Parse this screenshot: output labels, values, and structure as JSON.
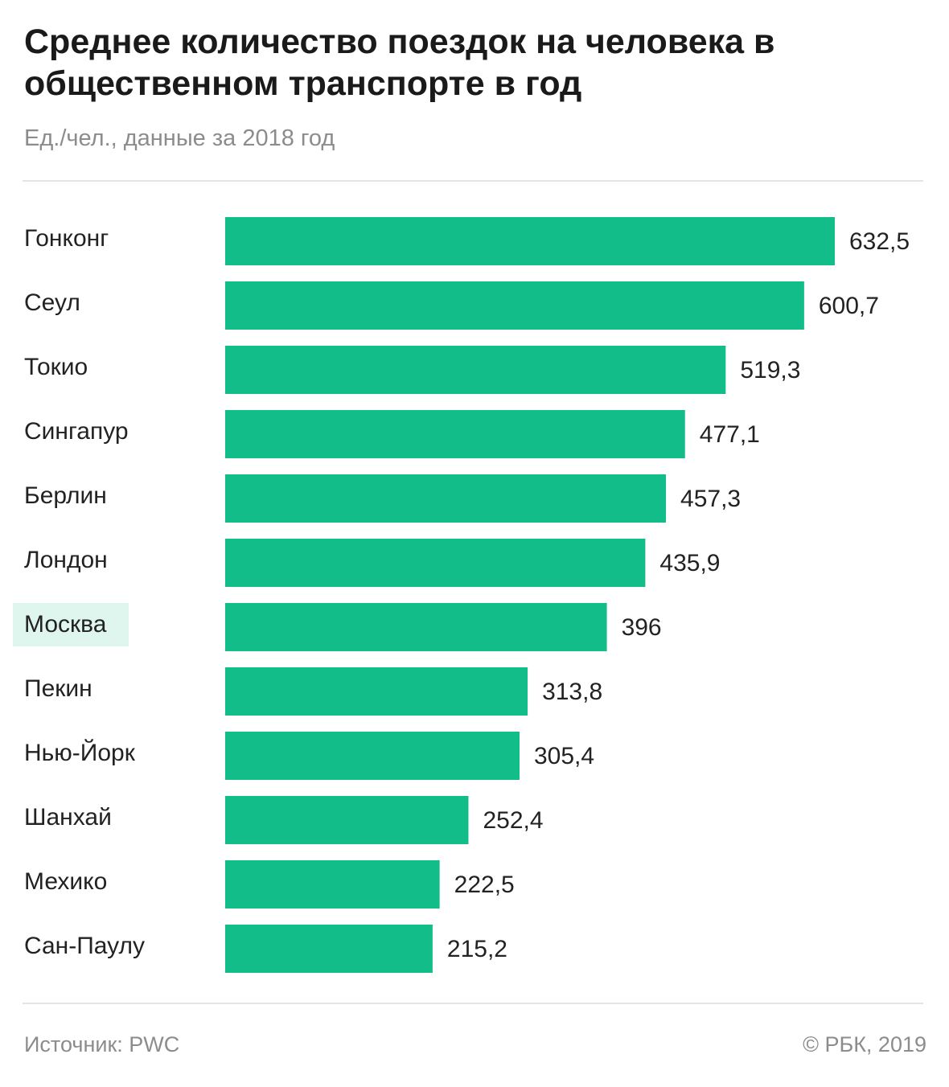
{
  "title": "Среднее количество поездок на человека в общественном транспорте в год",
  "subtitle": "Ед./чел., данные за 2018 год",
  "footer": {
    "source": "Источник: PWC",
    "credit": "© РБК, 2019"
  },
  "colors": {
    "bar": "#13bd89",
    "highlight_background": "#dff6ee",
    "text": "#222222",
    "muted": "#8c8c8c"
  },
  "chart_data": {
    "type": "bar",
    "orientation": "horizontal",
    "title": "Среднее количество поездок на человека в общественном транспорте в год",
    "subtitle": "Ед./чел., данные за 2018 год",
    "categories": [
      "Гонконг",
      "Сеул",
      "Токио",
      "Сингапур",
      "Берлин",
      "Лондон",
      "Москва",
      "Пекин",
      "Нью-Йорк",
      "Шанхай",
      "Мехико",
      "Сан-Паулу"
    ],
    "values": [
      632.5,
      600.7,
      519.3,
      477.1,
      457.3,
      435.9,
      396,
      313.8,
      305.4,
      252.4,
      222.5,
      215.2
    ],
    "value_labels": [
      "632,5",
      "600,7",
      "519,3",
      "477,1",
      "457,3",
      "435,9",
      "396",
      "313,8",
      "305,4",
      "252,4",
      "222,5",
      "215,2"
    ],
    "highlighted_category": "Москва",
    "xlim": [
      0,
      632.5
    ],
    "grid": false,
    "legend": "none"
  }
}
